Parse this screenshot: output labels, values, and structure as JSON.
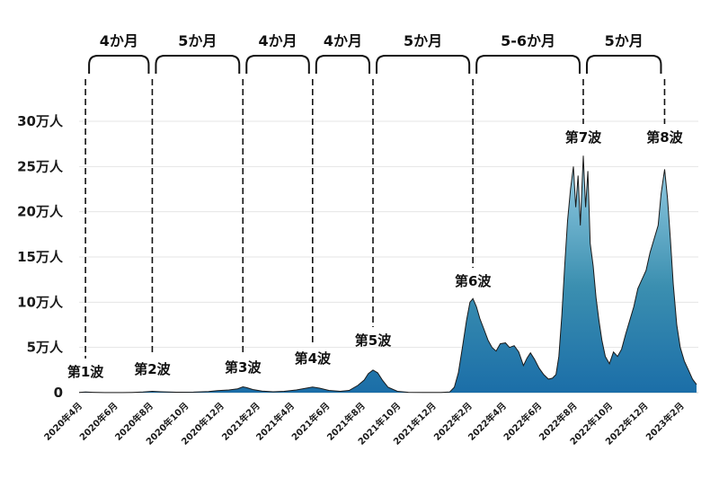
{
  "chart_data": {
    "type": "area",
    "title": "",
    "xlabel": "",
    "ylabel": "",
    "ylim": [
      0,
      300000
    ],
    "yticks": [
      {
        "value": 0,
        "label": "0"
      },
      {
        "value": 50000,
        "label": "5万人"
      },
      {
        "value": 100000,
        "label": "10万人"
      },
      {
        "value": 150000,
        "label": "15万人"
      },
      {
        "value": 200000,
        "label": "20万人"
      },
      {
        "value": 250000,
        "label": "25万人"
      },
      {
        "value": 300000,
        "label": "30万人"
      }
    ],
    "xrange": [
      "2020-04-01",
      "2023-02-28"
    ],
    "xticks": [
      {
        "date": "2020-04-01",
        "label": "2020年4月"
      },
      {
        "date": "2020-06-01",
        "label": "2020年6月"
      },
      {
        "date": "2020-08-01",
        "label": "2020年8月"
      },
      {
        "date": "2020-10-01",
        "label": "2020年10月"
      },
      {
        "date": "2020-12-01",
        "label": "2020年12月"
      },
      {
        "date": "2021-02-01",
        "label": "2021年2月"
      },
      {
        "date": "2021-04-01",
        "label": "2021年4月"
      },
      {
        "date": "2021-06-01",
        "label": "2021年6月"
      },
      {
        "date": "2021-08-01",
        "label": "2021年8月"
      },
      {
        "date": "2021-10-01",
        "label": "2021年10月"
      },
      {
        "date": "2021-12-01",
        "label": "2021年12月"
      },
      {
        "date": "2022-02-01",
        "label": "2022年2月"
      },
      {
        "date": "2022-04-01",
        "label": "2022年4月"
      },
      {
        "date": "2022-06-01",
        "label": "2022年6月"
      },
      {
        "date": "2022-08-01",
        "label": "2022年8月"
      },
      {
        "date": "2022-10-01",
        "label": "2022年10月"
      },
      {
        "date": "2022-12-01",
        "label": "2022年12月"
      },
      {
        "date": "2023-02-01",
        "label": "2023年2月"
      }
    ],
    "grid": true,
    "fill_colors": {
      "top": "#9ad0e6",
      "mid": "#3b8fb0",
      "bottom": "#1b6ea8",
      "line": "#1a1a1a"
    },
    "series": [
      {
        "points": [
          [
            "2020-04-01",
            300
          ],
          [
            "2020-04-12",
            700
          ],
          [
            "2020-04-25",
            400
          ],
          [
            "2020-05-15",
            100
          ],
          [
            "2020-06-15",
            100
          ],
          [
            "2020-07-01",
            300
          ],
          [
            "2020-07-20",
            800
          ],
          [
            "2020-08-05",
            1500
          ],
          [
            "2020-08-20",
            1000
          ],
          [
            "2020-09-15",
            500
          ],
          [
            "2020-10-15",
            600
          ],
          [
            "2020-11-10",
            1200
          ],
          [
            "2020-11-25",
            2300
          ],
          [
            "2020-12-15",
            3000
          ],
          [
            "2020-12-30",
            4300
          ],
          [
            "2021-01-08",
            6500
          ],
          [
            "2021-01-15",
            5500
          ],
          [
            "2021-01-25",
            3500
          ],
          [
            "2021-02-10",
            1800
          ],
          [
            "2021-03-01",
            1000
          ],
          [
            "2021-03-20",
            1500
          ],
          [
            "2021-04-10",
            3000
          ],
          [
            "2021-04-25",
            4800
          ],
          [
            "2021-05-08",
            6200
          ],
          [
            "2021-05-20",
            5000
          ],
          [
            "2021-06-05",
            2500
          ],
          [
            "2021-06-25",
            1500
          ],
          [
            "2021-07-10",
            2500
          ],
          [
            "2021-07-25",
            8000
          ],
          [
            "2021-08-05",
            14000
          ],
          [
            "2021-08-12",
            21000
          ],
          [
            "2021-08-20",
            25000
          ],
          [
            "2021-08-28",
            22000
          ],
          [
            "2021-09-05",
            14000
          ],
          [
            "2021-09-15",
            6000
          ],
          [
            "2021-10-01",
            1500
          ],
          [
            "2021-10-20",
            400
          ],
          [
            "2021-11-15",
            150
          ],
          [
            "2021-12-15",
            200
          ],
          [
            "2021-12-30",
            700
          ],
          [
            "2022-01-07",
            6000
          ],
          [
            "2022-01-14",
            22000
          ],
          [
            "2022-01-21",
            50000
          ],
          [
            "2022-01-28",
            80000
          ],
          [
            "2022-02-03",
            100000
          ],
          [
            "2022-02-08",
            104000
          ],
          [
            "2022-02-14",
            95000
          ],
          [
            "2022-02-20",
            82000
          ],
          [
            "2022-02-27",
            70000
          ],
          [
            "2022-03-06",
            58000
          ],
          [
            "2022-03-13",
            50000
          ],
          [
            "2022-03-20",
            46000
          ],
          [
            "2022-03-27",
            54000
          ],
          [
            "2022-04-05",
            55000
          ],
          [
            "2022-04-12",
            50000
          ],
          [
            "2022-04-20",
            52000
          ],
          [
            "2022-04-28",
            45000
          ],
          [
            "2022-05-06",
            30000
          ],
          [
            "2022-05-12",
            38000
          ],
          [
            "2022-05-18",
            44000
          ],
          [
            "2022-05-25",
            37000
          ],
          [
            "2022-06-02",
            27000
          ],
          [
            "2022-06-10",
            20000
          ],
          [
            "2022-06-18",
            15000
          ],
          [
            "2022-06-25",
            16000
          ],
          [
            "2022-07-01",
            20000
          ],
          [
            "2022-07-06",
            40000
          ],
          [
            "2022-07-11",
            85000
          ],
          [
            "2022-07-16",
            140000
          ],
          [
            "2022-07-21",
            190000
          ],
          [
            "2022-07-26",
            225000
          ],
          [
            "2022-07-31",
            250000
          ],
          [
            "2022-08-04",
            205000
          ],
          [
            "2022-08-08",
            240000
          ],
          [
            "2022-08-12",
            185000
          ],
          [
            "2022-08-17",
            262000
          ],
          [
            "2022-08-21",
            205000
          ],
          [
            "2022-08-25",
            245000
          ],
          [
            "2022-08-29",
            165000
          ],
          [
            "2022-09-03",
            140000
          ],
          [
            "2022-09-08",
            105000
          ],
          [
            "2022-09-13",
            80000
          ],
          [
            "2022-09-18",
            58000
          ],
          [
            "2022-09-24",
            40000
          ],
          [
            "2022-10-01",
            32000
          ],
          [
            "2022-10-08",
            45000
          ],
          [
            "2022-10-15",
            40000
          ],
          [
            "2022-10-22",
            48000
          ],
          [
            "2022-10-29",
            65000
          ],
          [
            "2022-11-05",
            80000
          ],
          [
            "2022-11-12",
            95000
          ],
          [
            "2022-11-19",
            115000
          ],
          [
            "2022-11-26",
            125000
          ],
          [
            "2022-12-03",
            135000
          ],
          [
            "2022-12-10",
            155000
          ],
          [
            "2022-12-17",
            170000
          ],
          [
            "2022-12-24",
            185000
          ],
          [
            "2022-12-29",
            220000
          ],
          [
            "2023-01-04",
            247000
          ],
          [
            "2023-01-09",
            215000
          ],
          [
            "2023-01-14",
            170000
          ],
          [
            "2023-01-19",
            120000
          ],
          [
            "2023-01-25",
            75000
          ],
          [
            "2023-01-31",
            50000
          ],
          [
            "2023-02-07",
            35000
          ],
          [
            "2023-02-14",
            25000
          ],
          [
            "2023-02-21",
            15000
          ],
          [
            "2023-02-28",
            9000
          ]
        ]
      }
    ],
    "waves": [
      {
        "label": "第1波",
        "date": "2020-04-12"
      },
      {
        "label": "第2波",
        "date": "2020-08-05"
      },
      {
        "label": "第3波",
        "date": "2021-01-08"
      },
      {
        "label": "第4波",
        "date": "2021-05-08"
      },
      {
        "label": "第5波",
        "date": "2021-08-20"
      },
      {
        "label": "第6波",
        "date": "2022-02-08"
      },
      {
        "label": "第7波",
        "date": "2022-08-17"
      },
      {
        "label": "第8波",
        "date": "2023-01-04"
      }
    ],
    "intervals": [
      "4か月",
      "5か月",
      "4か月",
      "4か月",
      "5か月",
      "5-6か月",
      "5か月"
    ]
  }
}
